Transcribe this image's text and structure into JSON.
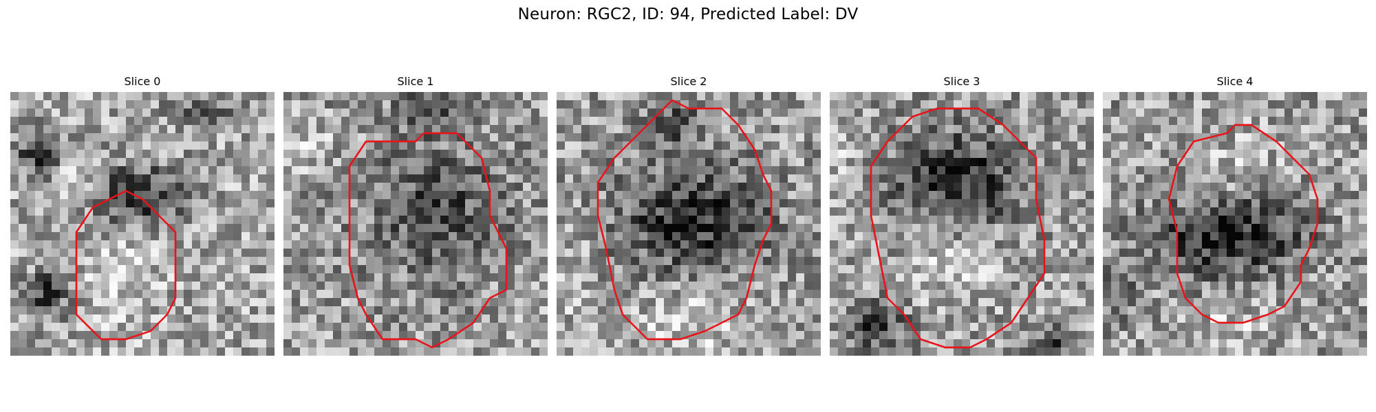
{
  "figure": {
    "title": "Neuron: RGC2, ID: 94, Predicted Label: DV",
    "contour_color": "#e8141a",
    "colormap": "grayscale"
  },
  "slices": [
    {
      "title": "Slice 0"
    },
    {
      "title": "Slice 1"
    },
    {
      "title": "Slice 2"
    },
    {
      "title": "Slice 3"
    },
    {
      "title": "Slice 4"
    }
  ]
}
